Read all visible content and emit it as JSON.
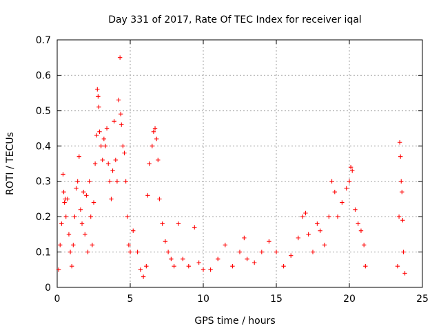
{
  "chart_data": {
    "type": "scatter",
    "title": "Day 331 of 2017, Rate Of TEC Index for receiver iqal",
    "xlabel": "GPS time / hours",
    "ylabel": "ROTI / TECUs",
    "xlim": [
      0,
      25
    ],
    "ylim": [
      0,
      0.7
    ],
    "xticks": [
      0,
      5,
      10,
      15,
      20,
      25
    ],
    "xtick_labels": [
      "0",
      "5",
      "10",
      "15",
      "20",
      "25"
    ],
    "yticks": [
      0,
      0.1,
      0.2,
      0.3,
      0.4,
      0.5,
      0.6,
      0.7
    ],
    "ytick_labels": [
      "0",
      "0.1",
      "0.2",
      "0.3",
      "0.4",
      "0.5",
      "0.6",
      "0.7"
    ],
    "grid": true,
    "marker": "+",
    "color": "#ff0000",
    "series": [
      {
        "name": "ROTI",
        "points": [
          [
            0.1,
            0.05
          ],
          [
            0.2,
            0.12
          ],
          [
            0.3,
            0.18
          ],
          [
            0.4,
            0.32
          ],
          [
            0.45,
            0.27
          ],
          [
            0.5,
            0.24
          ],
          [
            0.55,
            0.25
          ],
          [
            0.6,
            0.2
          ],
          [
            0.7,
            0.25
          ],
          [
            0.8,
            0.15
          ],
          [
            0.9,
            0.1
          ],
          [
            1.0,
            0.06
          ],
          [
            1.1,
            0.12
          ],
          [
            1.2,
            0.2
          ],
          [
            1.3,
            0.28
          ],
          [
            1.4,
            0.3
          ],
          [
            1.5,
            0.37
          ],
          [
            1.6,
            0.22
          ],
          [
            1.7,
            0.18
          ],
          [
            1.8,
            0.27
          ],
          [
            1.9,
            0.15
          ],
          [
            2.0,
            0.26
          ],
          [
            2.1,
            0.1
          ],
          [
            2.2,
            0.3
          ],
          [
            2.3,
            0.2
          ],
          [
            2.4,
            0.12
          ],
          [
            2.5,
            0.24
          ],
          [
            2.6,
            0.35
          ],
          [
            2.7,
            0.43
          ],
          [
            2.75,
            0.56
          ],
          [
            2.8,
            0.54
          ],
          [
            2.85,
            0.51
          ],
          [
            2.9,
            0.44
          ],
          [
            3.0,
            0.4
          ],
          [
            3.1,
            0.36
          ],
          [
            3.2,
            0.42
          ],
          [
            3.3,
            0.4
          ],
          [
            3.4,
            0.45
          ],
          [
            3.5,
            0.35
          ],
          [
            3.6,
            0.3
          ],
          [
            3.7,
            0.25
          ],
          [
            3.8,
            0.33
          ],
          [
            3.9,
            0.47
          ],
          [
            4.0,
            0.36
          ],
          [
            4.1,
            0.3
          ],
          [
            4.2,
            0.53
          ],
          [
            4.3,
            0.65
          ],
          [
            4.35,
            0.49
          ],
          [
            4.4,
            0.46
          ],
          [
            4.5,
            0.4
          ],
          [
            4.6,
            0.38
          ],
          [
            4.7,
            0.3
          ],
          [
            4.8,
            0.2
          ],
          [
            4.9,
            0.12
          ],
          [
            5.0,
            0.1
          ],
          [
            5.2,
            0.16
          ],
          [
            5.5,
            0.1
          ],
          [
            5.7,
            0.05
          ],
          [
            5.9,
            0.03
          ],
          [
            6.1,
            0.06
          ],
          [
            6.2,
            0.26
          ],
          [
            6.3,
            0.35
          ],
          [
            6.5,
            0.4
          ],
          [
            6.6,
            0.44
          ],
          [
            6.7,
            0.45
          ],
          [
            6.8,
            0.42
          ],
          [
            6.9,
            0.36
          ],
          [
            7.0,
            0.25
          ],
          [
            7.2,
            0.18
          ],
          [
            7.4,
            0.13
          ],
          [
            7.6,
            0.1
          ],
          [
            7.8,
            0.08
          ],
          [
            8.0,
            0.06
          ],
          [
            8.3,
            0.18
          ],
          [
            8.6,
            0.08
          ],
          [
            9.0,
            0.06
          ],
          [
            9.4,
            0.17
          ],
          [
            9.7,
            0.07
          ],
          [
            10.0,
            0.05
          ],
          [
            10.5,
            0.05
          ],
          [
            11.0,
            0.08
          ],
          [
            11.5,
            0.12
          ],
          [
            12.0,
            0.06
          ],
          [
            12.5,
            0.1
          ],
          [
            12.8,
            0.14
          ],
          [
            13.0,
            0.08
          ],
          [
            13.5,
            0.07
          ],
          [
            14.0,
            0.1
          ],
          [
            14.5,
            0.13
          ],
          [
            15.0,
            0.1
          ],
          [
            15.5,
            0.06
          ],
          [
            16.0,
            0.09
          ],
          [
            16.5,
            0.14
          ],
          [
            16.8,
            0.2
          ],
          [
            17.0,
            0.21
          ],
          [
            17.2,
            0.15
          ],
          [
            17.5,
            0.1
          ],
          [
            17.8,
            0.18
          ],
          [
            18.0,
            0.16
          ],
          [
            18.3,
            0.12
          ],
          [
            18.6,
            0.2
          ],
          [
            18.8,
            0.3
          ],
          [
            19.0,
            0.27
          ],
          [
            19.2,
            0.2
          ],
          [
            19.5,
            0.24
          ],
          [
            19.8,
            0.28
          ],
          [
            20.0,
            0.3
          ],
          [
            20.1,
            0.34
          ],
          [
            20.2,
            0.33
          ],
          [
            20.4,
            0.22
          ],
          [
            20.6,
            0.18
          ],
          [
            20.8,
            0.16
          ],
          [
            21.0,
            0.12
          ],
          [
            21.1,
            0.06
          ],
          [
            23.3,
            0.06
          ],
          [
            23.4,
            0.2
          ],
          [
            23.45,
            0.41
          ],
          [
            23.5,
            0.37
          ],
          [
            23.55,
            0.3
          ],
          [
            23.6,
            0.27
          ],
          [
            23.65,
            0.19
          ],
          [
            23.7,
            0.1
          ],
          [
            23.8,
            0.04
          ]
        ]
      }
    ]
  }
}
